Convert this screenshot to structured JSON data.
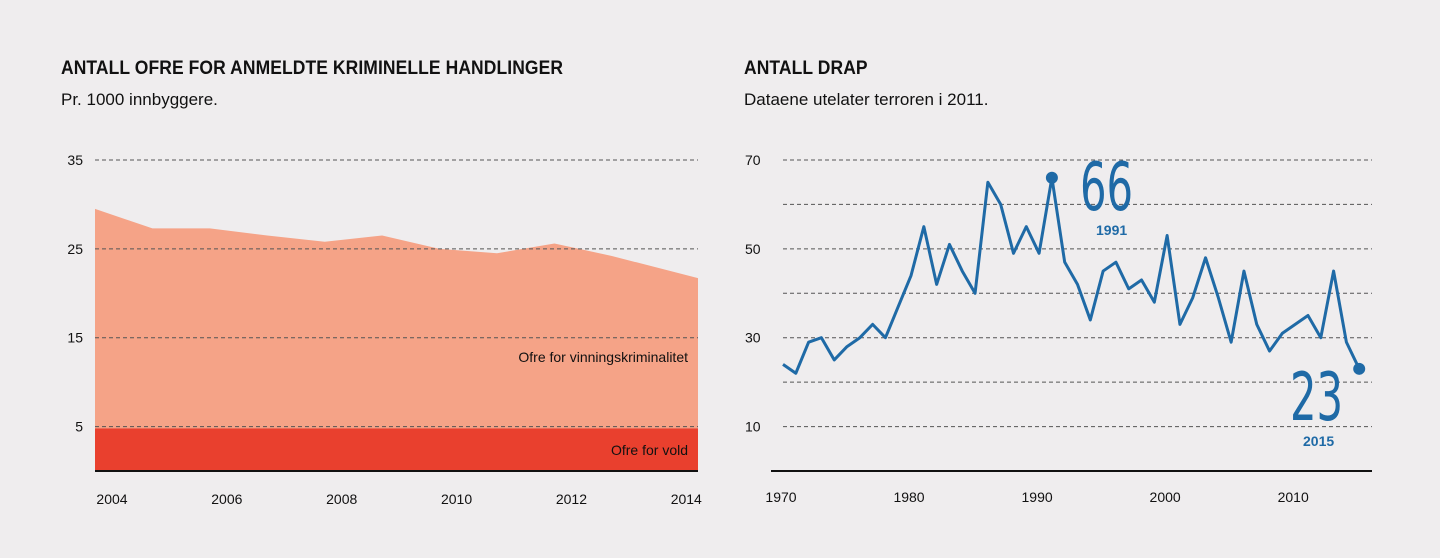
{
  "chart_data": [
    {
      "type": "area",
      "title": "ANTALL OFRE FOR ANMELDTE KRIMINELLE HANDLINGER",
      "subtitle": "Pr. 1000 innbyggere.",
      "xlabel": "",
      "ylabel": "",
      "xlim": [
        2004,
        2014.5
      ],
      "ylim": [
        0,
        35
      ],
      "y_ticks": [
        "35",
        "25",
        "15",
        "5"
      ],
      "y_tick_values": [
        35,
        25,
        15,
        5
      ],
      "x_ticks": [
        "2004",
        "2006",
        "2008",
        "2010",
        "2012",
        "2014"
      ],
      "x_tick_values": [
        2004,
        2006,
        2008,
        2010,
        2012,
        2014
      ],
      "grid": true,
      "x": [
        2004,
        2005,
        2006,
        2007,
        2008,
        2009,
        2010,
        2011,
        2012,
        2013,
        2014.5
      ],
      "series": [
        {
          "name": "Ofre for vold",
          "color": "#e9402e",
          "values": [
            4.8,
            4.8,
            4.8,
            4.8,
            4.8,
            4.8,
            4.8,
            4.8,
            4.8,
            4.8,
            4.8
          ]
        },
        {
          "name": "Ofre for vinningskriminalitet",
          "color": "#f5a387",
          "values": [
            24.7,
            22.5,
            22.5,
            21.7,
            21.0,
            21.7,
            20.2,
            19.7,
            20.8,
            19.4,
            16.9
          ]
        }
      ],
      "stacked": true
    },
    {
      "type": "line",
      "title": "ANTALL DRAP",
      "subtitle": "Dataene utelater terroren i 2011.",
      "xlabel": "",
      "ylabel": "",
      "xlim": [
        1970,
        2016
      ],
      "ylim": [
        0,
        70
      ],
      "y_ticks": [
        "70",
        "50",
        "30",
        "10"
      ],
      "y_tick_values": [
        70,
        50,
        30,
        10
      ],
      "x_ticks": [
        "1970",
        "1980",
        "1990",
        "2000",
        "2010"
      ],
      "x_tick_values": [
        1970,
        1980,
        1990,
        2000,
        2010
      ],
      "grid": true,
      "color": "#1f6aa6",
      "x": [
        1970,
        1971,
        1972,
        1973,
        1974,
        1975,
        1976,
        1977,
        1978,
        1979,
        1980,
        1981,
        1982,
        1983,
        1984,
        1985,
        1986,
        1987,
        1988,
        1989,
        1990,
        1991,
        1992,
        1993,
        1994,
        1995,
        1996,
        1997,
        1998,
        1999,
        2000,
        2001,
        2002,
        2003,
        2004,
        2005,
        2006,
        2007,
        2008,
        2009,
        2010,
        2011,
        2012,
        2013,
        2014,
        2015
      ],
      "values": [
        24,
        22,
        29,
        30,
        25,
        28,
        30,
        33,
        30,
        37,
        44,
        55,
        42,
        51,
        45,
        40,
        65,
        60,
        49,
        55,
        49,
        66,
        47,
        42,
        34,
        45,
        47,
        41,
        43,
        38,
        53,
        33,
        39,
        48,
        39,
        29,
        45,
        33,
        27,
        31,
        33,
        35,
        30,
        45,
        29,
        23
      ],
      "annotations": [
        {
          "value": "66",
          "year": "1991",
          "x": 1991,
          "y": 66
        },
        {
          "value": "23",
          "year": "2015",
          "x": 2015,
          "y": 23
        }
      ]
    }
  ]
}
